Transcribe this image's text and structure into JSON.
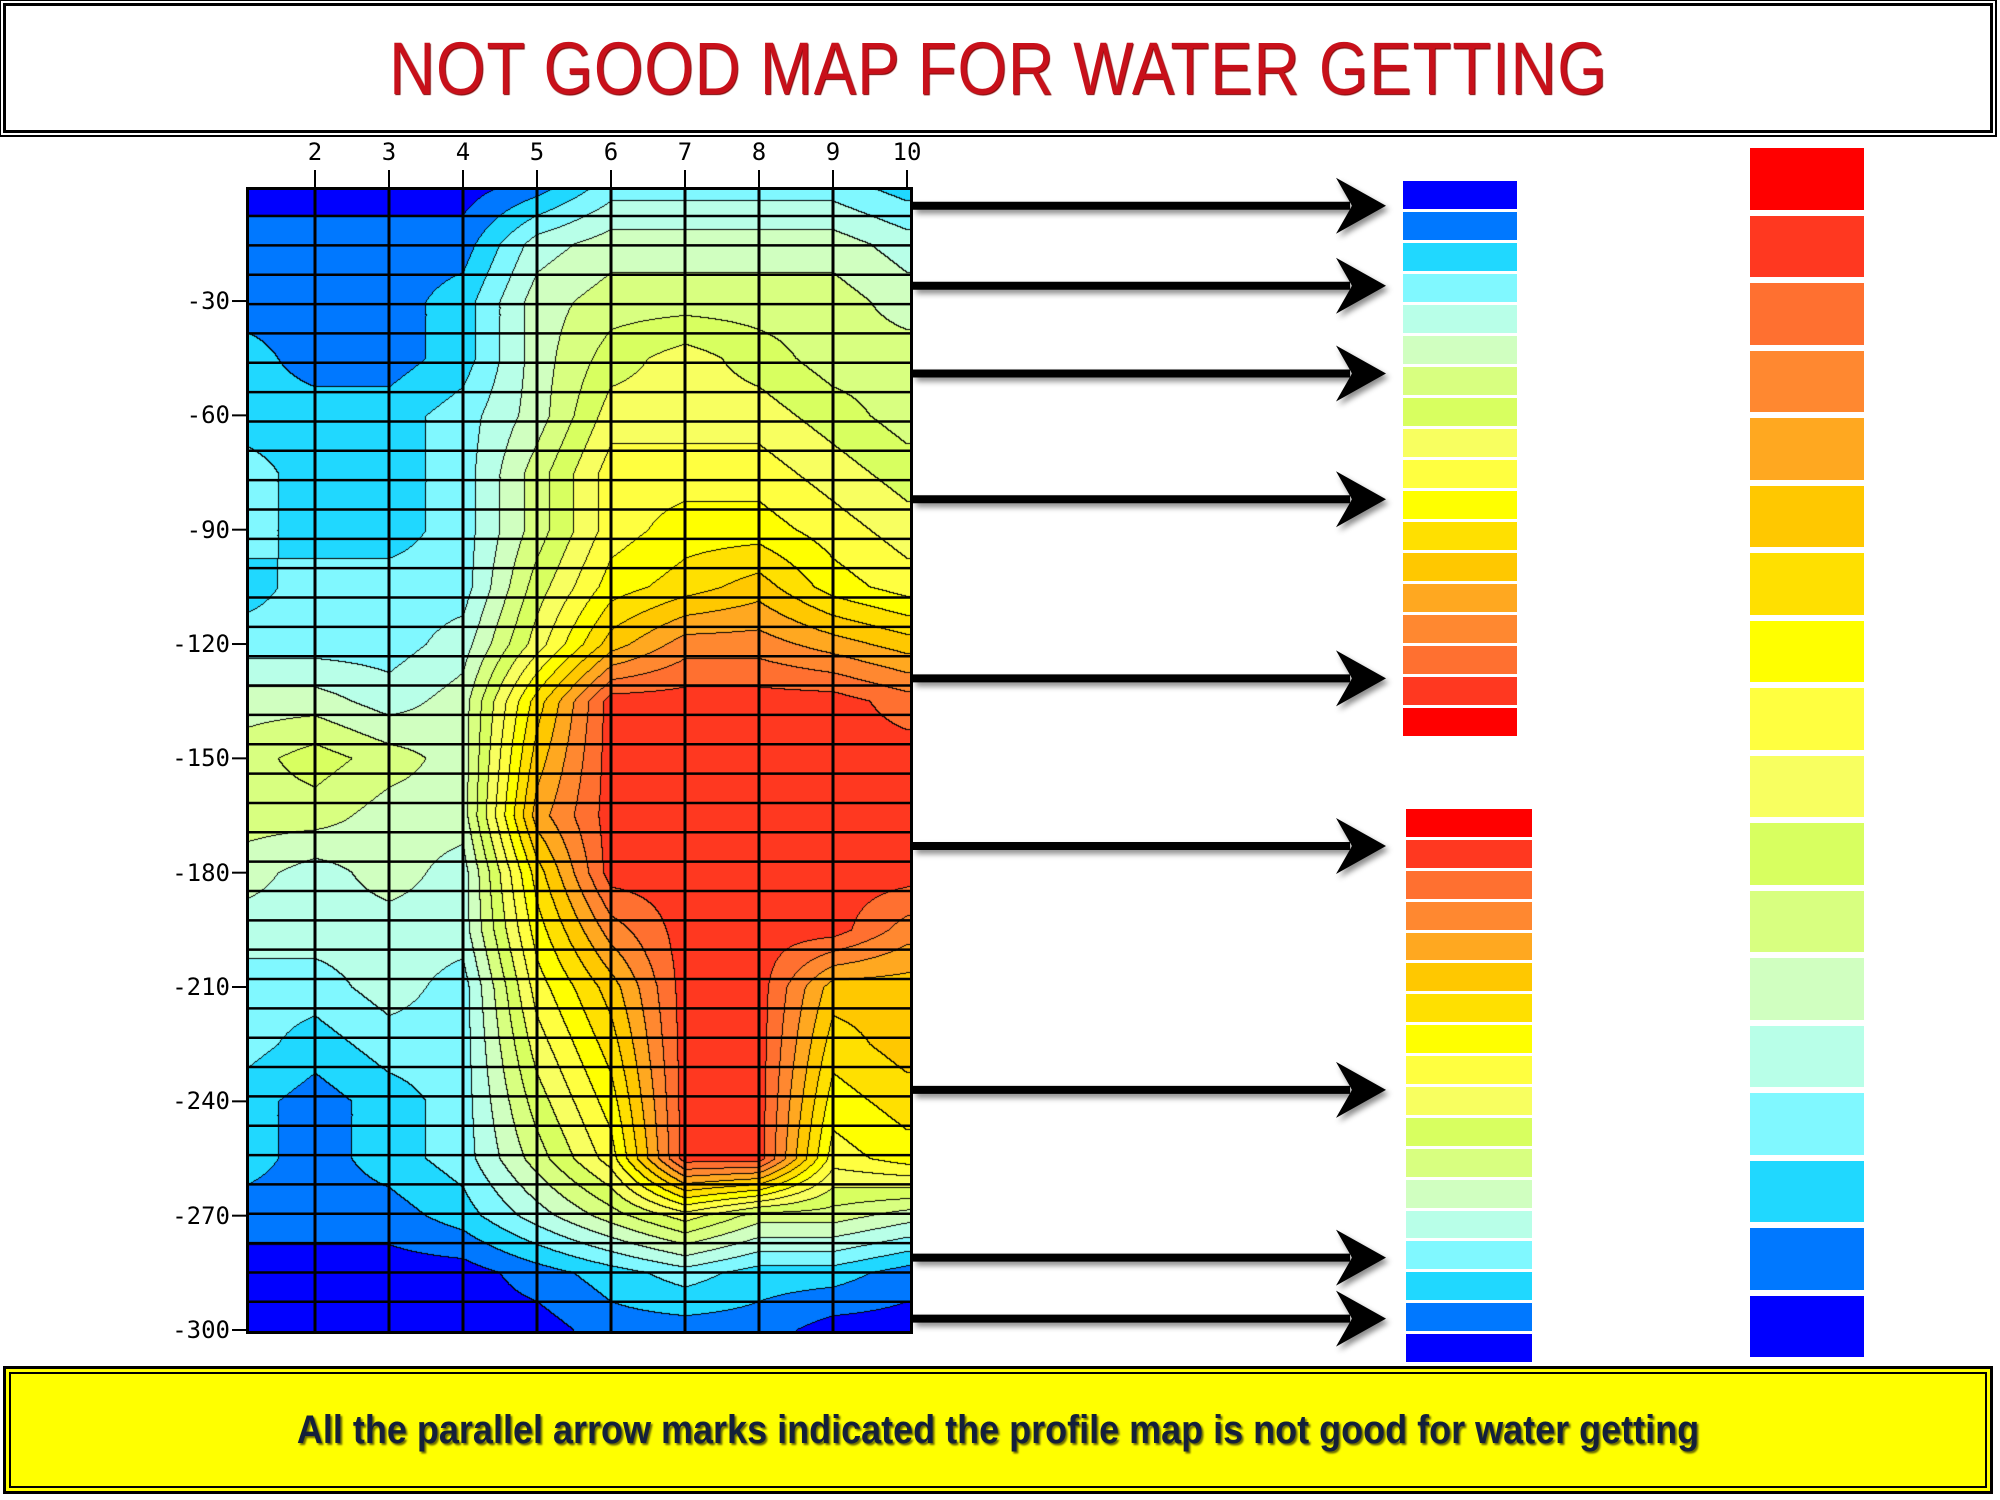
{
  "title": "NOT GOOD MAP FOR WATER GETTING",
  "banner": "All the parallel  arrow marks indicated the profile map is not good for water getting",
  "profile": {
    "x_ticks": [
      "2",
      "3",
      "4",
      "5",
      "6",
      "7",
      "8",
      "9",
      "10"
    ],
    "y_ticks": [
      "-30",
      "-60",
      "-90",
      "-120",
      "-150",
      "-180",
      "-210",
      "-240",
      "-270",
      "-300"
    ],
    "y_tick_values": [
      -30,
      -60,
      -90,
      -120,
      -150,
      -180,
      -210,
      -240,
      -270,
      -300
    ],
    "depth_range": [
      0,
      -300
    ],
    "station_range": [
      1,
      10
    ],
    "grid_depths": [
      0,
      15,
      30,
      45,
      60,
      75,
      90,
      105,
      120,
      135,
      150,
      165,
      180,
      195,
      210,
      225,
      240,
      255,
      270,
      285,
      300
    ],
    "level_grid": [
      [
        0,
        0,
        0,
        0,
        1,
        3,
        3,
        3,
        3,
        2
      ],
      [
        1,
        1,
        1,
        1,
        4,
        5,
        5,
        5,
        5,
        4
      ],
      [
        1,
        1,
        1,
        2,
        5,
        6,
        6,
        6,
        6,
        5
      ],
      [
        2,
        1,
        1,
        2,
        5,
        7,
        8,
        7,
        6,
        6
      ],
      [
        2,
        2,
        2,
        3,
        5,
        8,
        8,
        8,
        7,
        6
      ],
      [
        3,
        2,
        2,
        3,
        6,
        9,
        9,
        9,
        8,
        7
      ],
      [
        3,
        2,
        2,
        3,
        6,
        9,
        10,
        10,
        9,
        8
      ],
      [
        2,
        3,
        3,
        3,
        7,
        10,
        11,
        12,
        10,
        9
      ],
      [
        3,
        3,
        3,
        4,
        8,
        12,
        14,
        14,
        13,
        12
      ],
      [
        5,
        5,
        4,
        5,
        11,
        16,
        16,
        16,
        16,
        15
      ],
      [
        6,
        7,
        6,
        5,
        12,
        16,
        16,
        16,
        16,
        16
      ],
      [
        6,
        6,
        5,
        5,
        13,
        16,
        16,
        16,
        16,
        16
      ],
      [
        5,
        4,
        5,
        4,
        11,
        16,
        16,
        16,
        16,
        16
      ],
      [
        4,
        4,
        4,
        4,
        10,
        14,
        16,
        16,
        16,
        14
      ],
      [
        3,
        3,
        4,
        3,
        9,
        12,
        16,
        16,
        12,
        12
      ],
      [
        3,
        2,
        3,
        3,
        8,
        11,
        16,
        16,
        11,
        12
      ],
      [
        2,
        1,
        2,
        3,
        7,
        10,
        16,
        16,
        10,
        11
      ],
      [
        2,
        1,
        2,
        3,
        6,
        9,
        16,
        16,
        9,
        10
      ],
      [
        1,
        1,
        1,
        2,
        4,
        6,
        8,
        6,
        6,
        5
      ],
      [
        0,
        0,
        0,
        0,
        1,
        2,
        3,
        2,
        2,
        1
      ],
      [
        0,
        0,
        0,
        0,
        0,
        1,
        1,
        1,
        0,
        0
      ]
    ]
  },
  "palette": [
    "#0000ff",
    "#0078ff",
    "#20d8ff",
    "#80f8ff",
    "#b8ffe8",
    "#d0ffc0",
    "#d8ff80",
    "#d8ff60",
    "#f8ff60",
    "#ffff40",
    "#ffff00",
    "#ffe000",
    "#ffc800",
    "#ffa820",
    "#ff8830",
    "#ff7030",
    "#ff3820",
    "#ff0000"
  ],
  "arrow_depths": [
    -5,
    -26,
    -49,
    -82,
    -129,
    -173,
    -237,
    -281,
    -297
  ],
  "colors": {
    "title": "#c8101a",
    "banner_bg": "#ffff00"
  }
}
